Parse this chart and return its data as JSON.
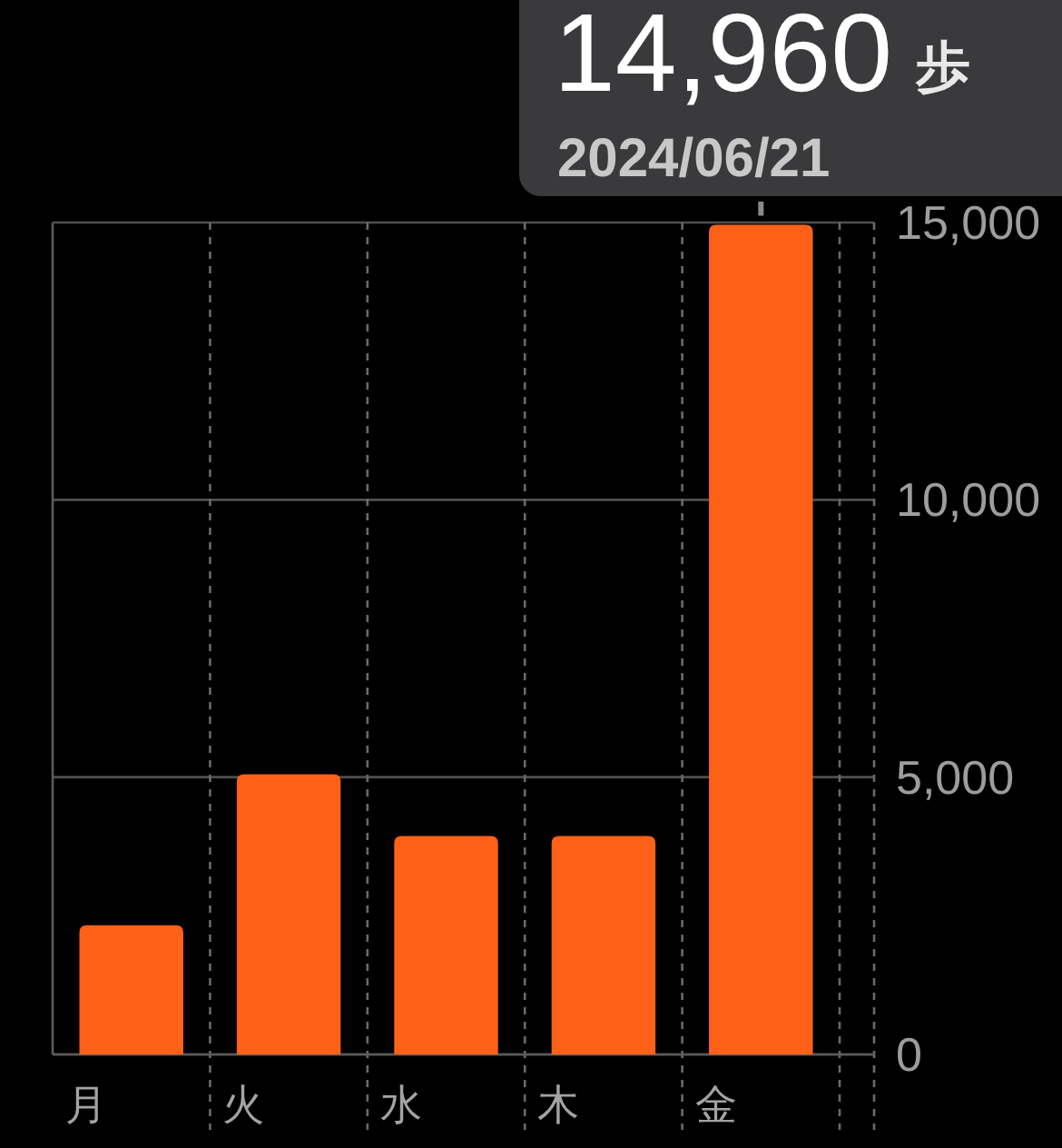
{
  "chart_data": {
    "type": "bar",
    "categories": [
      "月",
      "火",
      "水",
      "木",
      "金"
    ],
    "values": [
      2330,
      5050,
      3940,
      3940,
      14960
    ],
    "color": "#ff6119",
    "ylim": [
      0,
      15000
    ],
    "yticks": [
      {
        "value": 0,
        "label": "0"
      },
      {
        "value": 5000,
        "label": "5,000"
      },
      {
        "value": 10000,
        "label": "10,000"
      },
      {
        "value": 15000,
        "label": "15,000"
      }
    ],
    "grid": true,
    "annotations": [
      {
        "text": "14,960",
        "x": "金",
        "y": 14960
      },
      "歩",
      "2024/06/21"
    ]
  }
}
